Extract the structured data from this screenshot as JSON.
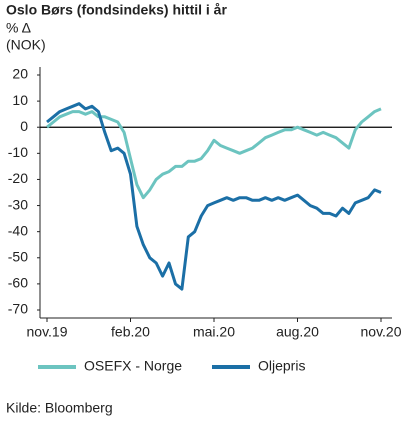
{
  "chart_data": {
    "type": "line",
    "title": "Oslo Børs (fondsindeks) hittil i år",
    "y_label": "% Δ",
    "y_unit": "(NOK)",
    "source": "Kilde: Bloomberg",
    "categories": [
      "nov.19",
      null,
      null,
      null,
      null,
      null,
      null,
      null,
      null,
      null,
      null,
      null,
      null,
      "feb.20",
      null,
      null,
      null,
      null,
      null,
      null,
      null,
      null,
      null,
      null,
      null,
      null,
      "mai.20",
      null,
      null,
      null,
      null,
      null,
      null,
      null,
      null,
      null,
      null,
      null,
      null,
      "aug.20",
      null,
      null,
      null,
      null,
      null,
      null,
      null,
      null,
      null,
      null,
      null,
      null,
      "nov.20"
    ],
    "ylim": [
      -70,
      20
    ],
    "yticks": [
      -70,
      -60,
      -50,
      -40,
      -30,
      -20,
      -10,
      0,
      10,
      20
    ],
    "zero_line": true,
    "series": [
      {
        "name": "OSEFX - Norge",
        "color": "#6cc4c0",
        "values": [
          0,
          2,
          4,
          5,
          6,
          6,
          5,
          6,
          4,
          4,
          3,
          2,
          -2,
          -12,
          -22,
          -27,
          -24,
          -20,
          -18,
          -17,
          -15,
          -15,
          -13,
          -13,
          -12,
          -9,
          -5,
          -7,
          -8,
          -9,
          -10,
          -9,
          -8,
          -6,
          -4,
          -3,
          -2,
          -1,
          -1,
          0,
          -1,
          -2,
          -3,
          -2,
          -3,
          -4,
          -6,
          -8,
          -1,
          2,
          4,
          6,
          7
        ]
      },
      {
        "name": "Oljepris",
        "color": "#1b6fa6",
        "values": [
          2,
          4,
          6,
          7,
          8,
          9,
          7,
          8,
          6,
          -2,
          -9,
          -8,
          -10,
          -18,
          -38,
          -45,
          -50,
          -52,
          -57,
          -52,
          -60,
          -62,
          -42,
          -40,
          -34,
          -30,
          -29,
          -28,
          -27,
          -28,
          -27,
          -27,
          -28,
          -28,
          -27,
          -28,
          -27,
          -28,
          -27,
          -26,
          -28,
          -30,
          -31,
          -33,
          -33,
          -34,
          -31,
          -33,
          -29,
          -28,
          -27,
          -24,
          -25
        ]
      }
    ]
  }
}
